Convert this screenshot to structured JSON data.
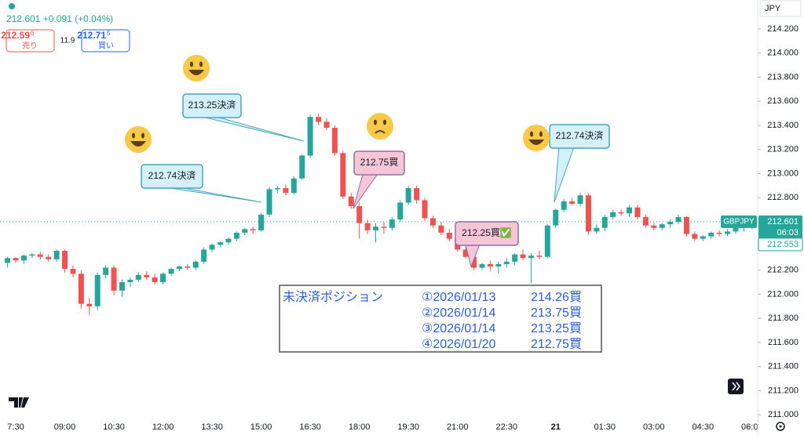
{
  "chart_data": {
    "type": "candlestick",
    "header": {
      "quote": "212.601 +0.091 (+0.04%)",
      "sell": {
        "price": "212.59",
        "sup": "6",
        "label": "売り"
      },
      "spread": 11.9,
      "buy": {
        "price": "212.71",
        "sup": "5",
        "label": "買い"
      }
    },
    "currency": "JPY",
    "categories": [
      null,
      "7:30",
      null,
      null,
      null,
      null,
      null,
      "09:00",
      null,
      null,
      null,
      null,
      null,
      "10:30",
      null,
      null,
      null,
      null,
      null,
      "12:00",
      null,
      null,
      null,
      null,
      null,
      "13:30",
      null,
      null,
      null,
      null,
      null,
      "15:00",
      null,
      null,
      null,
      null,
      null,
      "16:30",
      null,
      null,
      null,
      null,
      null,
      "18:00",
      null,
      null,
      null,
      null,
      null,
      "19:30",
      null,
      null,
      null,
      null,
      null,
      "21:00",
      null,
      null,
      null,
      null,
      null,
      "22:30",
      null,
      null,
      null,
      null,
      null,
      "21",
      null,
      null,
      null,
      null,
      null,
      "01:30",
      null,
      null,
      null,
      null,
      null,
      "03:00",
      null,
      null,
      null,
      null,
      null,
      "04:30",
      null,
      null,
      null,
      null,
      null,
      "06:00"
    ],
    "series": [
      {
        "name": "GBPJPY",
        "open": [
          212.26,
          212.3,
          212.28,
          212.32,
          212.33,
          212.31,
          212.29,
          212.36,
          212.21,
          212.17,
          211.92,
          211.9,
          212.16,
          212.22,
          212.03,
          212.1,
          212.12,
          212.16,
          212.14,
          212.1,
          212.17,
          212.21,
          212.23,
          212.22,
          212.27,
          212.37,
          212.41,
          212.43,
          212.46,
          212.51,
          212.54,
          212.53,
          212.66,
          212.87,
          212.88,
          212.84,
          212.96,
          213.15,
          213.47,
          213.43,
          213.38,
          213.17,
          212.81,
          212.73,
          212.59,
          212.53,
          212.56,
          212.55,
          212.62,
          212.76,
          212.88,
          212.78,
          212.63,
          212.57,
          212.51,
          212.46,
          212.37,
          212.31,
          212.22,
          212.25,
          212.23,
          212.25,
          212.27,
          212.33,
          212.3,
          212.32,
          212.31,
          212.57,
          212.7,
          212.77,
          212.75,
          212.82,
          212.52,
          212.55,
          212.64,
          212.68,
          212.67,
          212.72,
          212.64,
          212.57,
          212.55,
          212.58,
          212.6,
          212.64,
          212.5,
          212.46,
          212.48,
          212.51,
          212.5,
          212.52,
          212.55,
          212.56
        ],
        "high": [
          212.31,
          212.31,
          212.33,
          212.34,
          212.35,
          212.33,
          212.37,
          212.37,
          212.24,
          212.2,
          211.97,
          212.18,
          212.24,
          212.24,
          212.12,
          212.14,
          212.18,
          212.19,
          212.17,
          212.18,
          212.22,
          212.24,
          212.25,
          212.28,
          212.39,
          212.42,
          212.44,
          212.47,
          212.52,
          212.55,
          212.56,
          212.67,
          212.89,
          212.9,
          212.91,
          212.98,
          213.16,
          213.49,
          213.5,
          213.46,
          213.4,
          213.19,
          212.84,
          212.76,
          212.62,
          212.59,
          212.6,
          212.64,
          212.78,
          212.9,
          212.9,
          212.8,
          212.65,
          212.6,
          212.54,
          212.49,
          212.39,
          212.33,
          212.26,
          212.28,
          212.27,
          212.3,
          212.34,
          212.37,
          212.34,
          212.36,
          212.58,
          212.71,
          212.79,
          212.8,
          212.84,
          212.84,
          212.58,
          212.66,
          212.7,
          212.7,
          212.74,
          212.74,
          212.66,
          212.59,
          212.59,
          212.62,
          212.66,
          212.65,
          212.52,
          212.49,
          212.52,
          212.53,
          212.54,
          212.56,
          212.58,
          212.62
        ],
        "low": [
          212.22,
          212.26,
          212.25,
          212.3,
          212.29,
          212.27,
          212.27,
          212.18,
          212.14,
          211.88,
          211.83,
          211.87,
          212.13,
          211.99,
          211.98,
          212.06,
          212.1,
          212.12,
          212.08,
          212.08,
          212.15,
          212.19,
          212.2,
          212.2,
          212.25,
          212.35,
          212.39,
          212.41,
          212.44,
          212.49,
          212.5,
          212.52,
          212.64,
          212.84,
          212.82,
          212.83,
          212.95,
          213.13,
          213.4,
          213.36,
          213.15,
          212.79,
          212.71,
          212.46,
          212.5,
          212.43,
          212.5,
          212.53,
          212.6,
          212.74,
          212.75,
          212.61,
          212.55,
          212.49,
          212.44,
          212.35,
          212.3,
          212.2,
          212.2,
          212.19,
          212.17,
          212.22,
          212.24,
          212.28,
          212.09,
          212.29,
          212.3,
          212.55,
          212.68,
          212.74,
          212.73,
          212.49,
          212.5,
          212.52,
          212.62,
          212.65,
          212.64,
          212.62,
          212.55,
          212.53,
          212.53,
          212.55,
          212.58,
          212.48,
          212.44,
          212.44,
          212.46,
          212.48,
          212.48,
          212.5,
          212.52,
          212.54
        ],
        "close": [
          212.3,
          212.28,
          212.32,
          212.33,
          212.31,
          212.29,
          212.36,
          212.21,
          212.17,
          211.92,
          211.9,
          212.16,
          212.22,
          212.03,
          212.1,
          212.12,
          212.16,
          212.14,
          212.1,
          212.17,
          212.21,
          212.23,
          212.22,
          212.27,
          212.37,
          212.41,
          212.43,
          212.46,
          212.51,
          212.54,
          212.53,
          212.66,
          212.87,
          212.88,
          212.84,
          212.96,
          213.15,
          213.47,
          213.43,
          213.38,
          213.17,
          212.81,
          212.73,
          212.59,
          212.53,
          212.56,
          212.55,
          212.62,
          212.76,
          212.88,
          212.78,
          212.63,
          212.57,
          212.51,
          212.46,
          212.37,
          212.31,
          212.22,
          212.25,
          212.23,
          212.25,
          212.27,
          212.33,
          212.3,
          212.32,
          212.31,
          212.57,
          212.7,
          212.77,
          212.75,
          212.82,
          212.52,
          212.55,
          212.64,
          212.68,
          212.67,
          212.72,
          212.64,
          212.57,
          212.55,
          212.58,
          212.6,
          212.64,
          212.5,
          212.46,
          212.48,
          212.51,
          212.5,
          212.52,
          212.55,
          212.56,
          212.601
        ]
      }
    ],
    "up_color": "#26a69a",
    "down_color": "#ef5350",
    "ylim": [
      210.93,
      214.44
    ],
    "yticks": [
      {
        "value": 214.2,
        "label": "214.200"
      },
      {
        "value": 214.0,
        "label": "214.000"
      },
      {
        "value": 213.8,
        "label": "213.800"
      },
      {
        "value": 213.6,
        "label": "213.600"
      },
      {
        "value": 213.4,
        "label": "213.400"
      },
      {
        "value": 213.2,
        "label": "213.200"
      },
      {
        "value": 213.0,
        "label": "213.000"
      },
      {
        "value": 212.8,
        "label": "212.800"
      },
      {
        "value": 212.6,
        "label": "212.600"
      },
      {
        "value": 212.4,
        "label": "212.400"
      },
      {
        "value": 212.2,
        "label": "212.200"
      },
      {
        "value": 212.0,
        "label": "212.000"
      },
      {
        "value": 211.8,
        "label": "211.800"
      },
      {
        "value": 211.6,
        "label": "211.600"
      },
      {
        "value": 211.4,
        "label": "211.400"
      },
      {
        "value": 211.2,
        "label": "211.200"
      },
      {
        "value": 211.0,
        "label": "211.000"
      }
    ],
    "last_price": 212.601,
    "countdown": "06:03",
    "bid_price": 212.553,
    "annotations": [
      {
        "text": "213.25決済"
      },
      {
        "text": "212.74決済"
      },
      {
        "text": "212.75買"
      },
      {
        "text": "212.25買✅"
      },
      {
        "text": "212.74決済"
      }
    ],
    "position_box": {
      "title": "未決済ポジション",
      "rows": [
        [
          "①2026/01/13",
          "214.26買"
        ],
        [
          "②2026/01/14",
          "213.75買"
        ],
        [
          "③2026/01/14",
          "213.25買"
        ],
        [
          "④2026/01/20",
          "212.75買"
        ]
      ]
    }
  }
}
